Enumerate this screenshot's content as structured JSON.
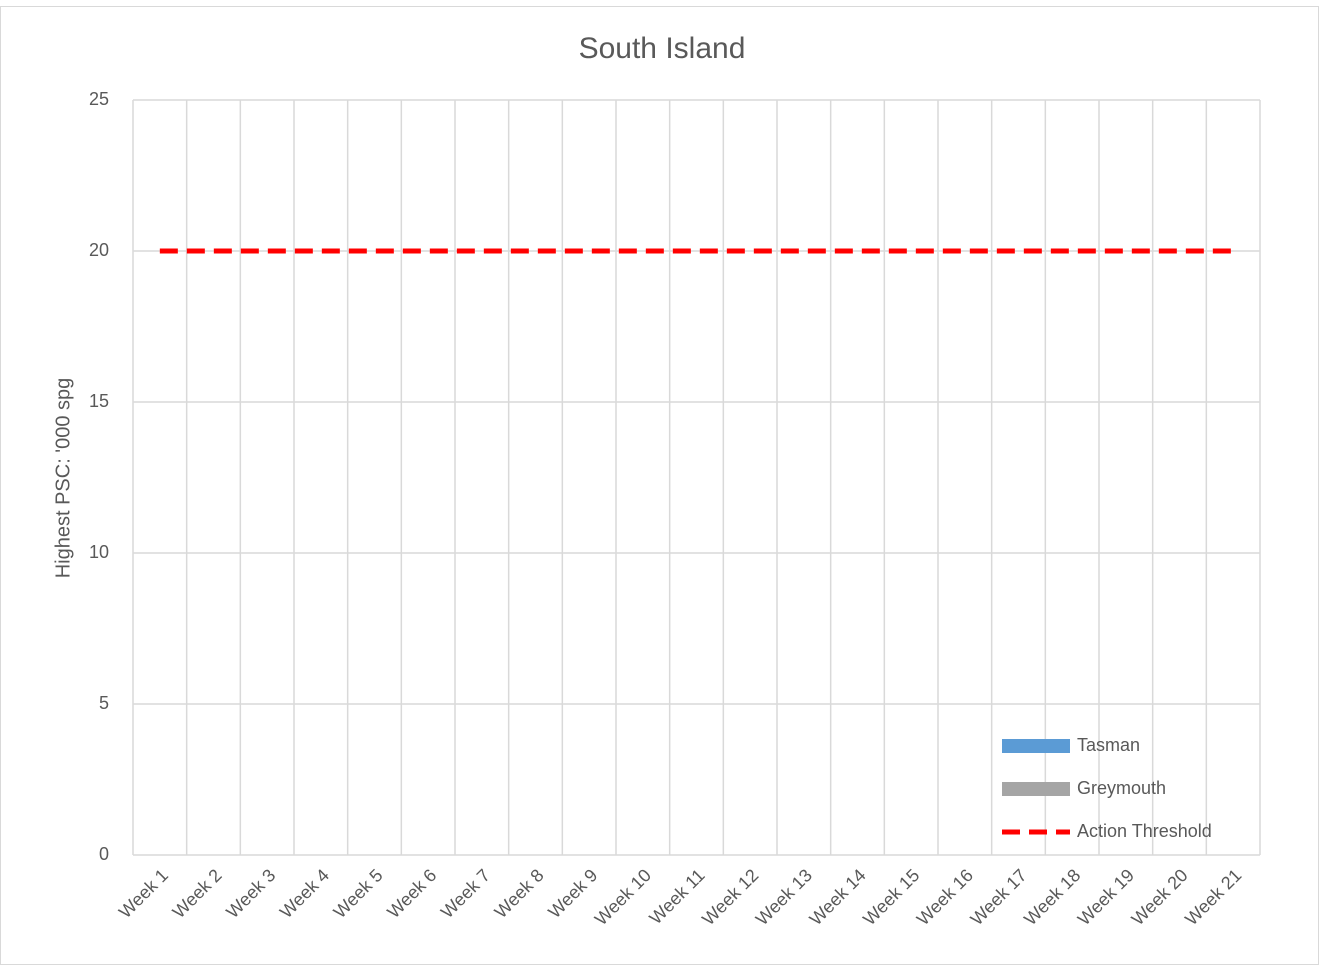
{
  "chart_data": {
    "type": "bar",
    "title": "South Island",
    "y_label": "Highest PSC: '000 spg",
    "categories": [
      "Week 1",
      "Week 2",
      "Week 3",
      "Week 4",
      "Week 5",
      "Week 6",
      "Week 7",
      "Week 8",
      "Week 9",
      "Week 10",
      "Week 11",
      "Week 12",
      "Week 13",
      "Week 14",
      "Week 15",
      "Week 16",
      "Week 17",
      "Week 18",
      "Week 19",
      "Week 20",
      "Week 21"
    ],
    "series": [
      {
        "name": "Tasman",
        "type": "bar",
        "color": "#5b9bd5",
        "values": [
          null,
          null,
          null,
          null,
          null,
          null,
          null,
          null,
          null,
          null,
          null,
          null,
          null,
          null,
          null,
          null,
          null,
          null,
          null,
          null,
          null
        ]
      },
      {
        "name": "Greymouth",
        "type": "bar",
        "color": "#a5a5a5",
        "values": [
          null,
          null,
          null,
          null,
          null,
          null,
          null,
          null,
          null,
          null,
          null,
          null,
          null,
          null,
          null,
          null,
          null,
          null,
          null,
          null,
          null
        ]
      },
      {
        "name": "Action Threshold",
        "type": "line",
        "dashed": true,
        "color": "#ff0000",
        "values": [
          20,
          20,
          20,
          20,
          20,
          20,
          20,
          20,
          20,
          20,
          20,
          20,
          20,
          20,
          20,
          20,
          20,
          20,
          20,
          20,
          20
        ]
      }
    ],
    "ylim": [
      0,
      25
    ],
    "yticks": [
      0,
      5,
      10,
      15,
      20,
      25
    ],
    "grid": true,
    "legend": "bottom-right"
  }
}
